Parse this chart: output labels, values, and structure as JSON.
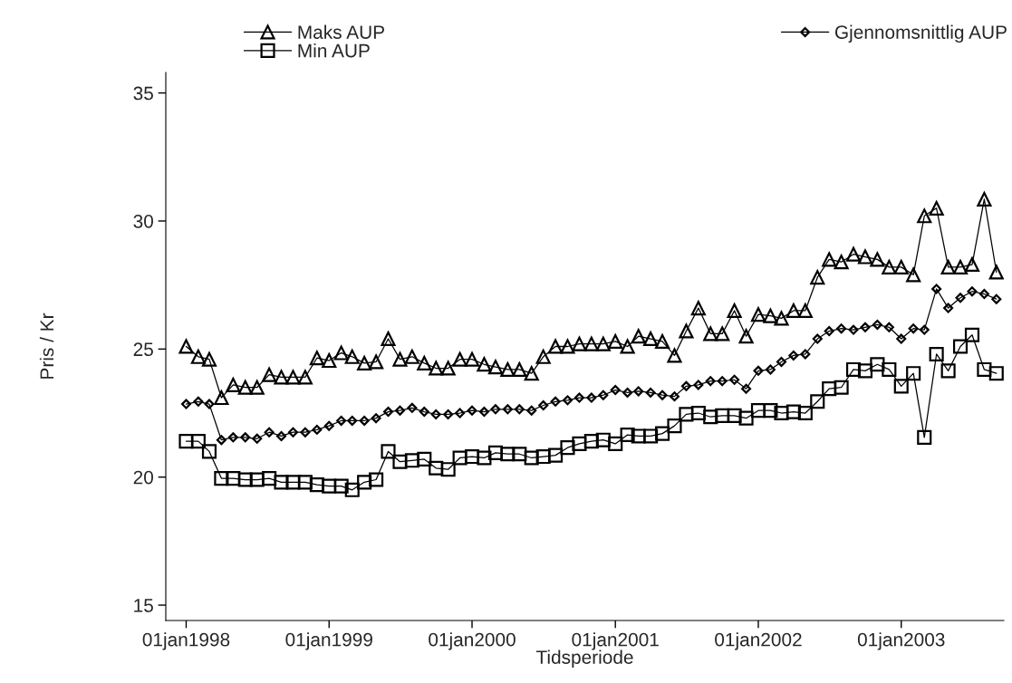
{
  "chart_data": {
    "type": "line",
    "xlabel": "Tidsperiode",
    "ylabel": "Pris / Kr",
    "x": [
      "1998-01",
      "1998-02",
      "1998-03",
      "1998-04",
      "1998-05",
      "1998-06",
      "1998-07",
      "1998-08",
      "1998-09",
      "1998-10",
      "1998-11",
      "1998-12",
      "1999-01",
      "1999-02",
      "1999-03",
      "1999-04",
      "1999-05",
      "1999-06",
      "1999-07",
      "1999-08",
      "1999-09",
      "1999-10",
      "1999-11",
      "1999-12",
      "2000-01",
      "2000-02",
      "2000-03",
      "2000-04",
      "2000-05",
      "2000-06",
      "2000-07",
      "2000-08",
      "2000-09",
      "2000-10",
      "2000-11",
      "2000-12",
      "2001-01",
      "2001-02",
      "2001-03",
      "2001-04",
      "2001-05",
      "2001-06",
      "2001-07",
      "2001-08",
      "2001-09",
      "2001-10",
      "2001-11",
      "2001-12",
      "2002-01",
      "2002-02",
      "2002-03",
      "2002-04",
      "2002-05",
      "2002-06",
      "2002-07",
      "2002-08",
      "2002-09",
      "2002-10",
      "2002-11",
      "2002-12",
      "2003-01",
      "2003-02",
      "2003-03",
      "2003-04",
      "2003-05",
      "2003-06",
      "2003-07",
      "2003-08",
      "2003-09"
    ],
    "series": [
      {
        "name": "Maks AUP",
        "color": "#000000",
        "marker": "triangle",
        "values": [
          25.1,
          24.7,
          24.6,
          23.1,
          23.6,
          23.5,
          23.5,
          24.0,
          23.9,
          23.9,
          23.9,
          24.65,
          24.55,
          24.85,
          24.7,
          24.45,
          24.5,
          25.4,
          24.6,
          24.7,
          24.45,
          24.25,
          24.25,
          24.6,
          24.6,
          24.4,
          24.3,
          24.2,
          24.2,
          24.05,
          24.7,
          25.1,
          25.1,
          25.2,
          25.2,
          25.2,
          25.3,
          25.1,
          25.5,
          25.4,
          25.3,
          24.75,
          25.7,
          26.6,
          25.6,
          25.6,
          26.5,
          25.5,
          26.35,
          26.3,
          26.2,
          26.5,
          26.5,
          27.8,
          28.5,
          28.4,
          28.7,
          28.6,
          28.5,
          28.2,
          28.2,
          27.9,
          30.2,
          30.5,
          28.2,
          28.2,
          28.3,
          30.85,
          28.0
        ]
      },
      {
        "name": "Gjennomsnittlig AUP",
        "color": "#000000",
        "marker": "diamond",
        "values": [
          22.85,
          22.95,
          22.85,
          21.45,
          21.55,
          21.55,
          21.5,
          21.75,
          21.6,
          21.75,
          21.75,
          21.85,
          22.0,
          22.2,
          22.2,
          22.2,
          22.3,
          22.55,
          22.6,
          22.7,
          22.55,
          22.45,
          22.45,
          22.5,
          22.6,
          22.55,
          22.65,
          22.65,
          22.65,
          22.6,
          22.8,
          22.95,
          23.0,
          23.1,
          23.1,
          23.2,
          23.4,
          23.3,
          23.35,
          23.3,
          23.2,
          23.15,
          23.55,
          23.6,
          23.75,
          23.75,
          23.8,
          23.45,
          24.15,
          24.2,
          24.5,
          24.75,
          24.8,
          25.4,
          25.7,
          25.8,
          25.75,
          25.85,
          25.95,
          25.85,
          25.4,
          25.8,
          25.75,
          27.35,
          26.6,
          27.0,
          27.25,
          27.15,
          26.95
        ]
      },
      {
        "name": "Min AUP",
        "color": "#000000",
        "marker": "square",
        "values": [
          21.4,
          21.4,
          21.0,
          19.95,
          19.95,
          19.9,
          19.9,
          19.95,
          19.8,
          19.8,
          19.8,
          19.7,
          19.65,
          19.65,
          19.5,
          19.8,
          19.9,
          21.0,
          20.6,
          20.65,
          20.7,
          20.35,
          20.3,
          20.75,
          20.8,
          20.75,
          20.95,
          20.9,
          20.9,
          20.75,
          20.8,
          20.85,
          21.15,
          21.3,
          21.4,
          21.45,
          21.3,
          21.65,
          21.6,
          21.6,
          21.7,
          22.0,
          22.45,
          22.5,
          22.35,
          22.4,
          22.4,
          22.3,
          22.6,
          22.6,
          22.5,
          22.55,
          22.5,
          22.95,
          23.45,
          23.5,
          24.2,
          24.15,
          24.4,
          24.2,
          23.55,
          24.05,
          21.55,
          24.8,
          24.15,
          25.1,
          25.55,
          24.2,
          24.05
        ]
      }
    ],
    "xlim": [
      "1997-11-10",
      "2003-09-20"
    ],
    "xticks": [
      {
        "value": "1998-01",
        "label": "01jan1998"
      },
      {
        "value": "1999-01",
        "label": "01jan1999"
      },
      {
        "value": "2000-01",
        "label": "01jan2000"
      },
      {
        "value": "2001-01",
        "label": "01jan2001"
      },
      {
        "value": "2002-01",
        "label": "01jan2002"
      },
      {
        "value": "2003-01",
        "label": "01jan2003"
      }
    ],
    "ylim": [
      14.4,
      35.8
    ],
    "yticks": [
      15,
      20,
      25,
      30,
      35
    ],
    "grid": false,
    "legend": "top",
    "line_style": "solid"
  }
}
